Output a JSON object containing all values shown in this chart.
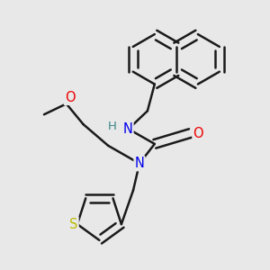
{
  "bg_color": "#e8e8e8",
  "bond_color": "#1a1a1a",
  "bond_width": 1.8,
  "atom_colors": {
    "N": "#0000ee",
    "O": "#ee0000",
    "S": "#bbbb00",
    "H": "#3a8888",
    "C": "#1a1a1a"
  },
  "fig_width": 3.0,
  "fig_height": 3.0
}
